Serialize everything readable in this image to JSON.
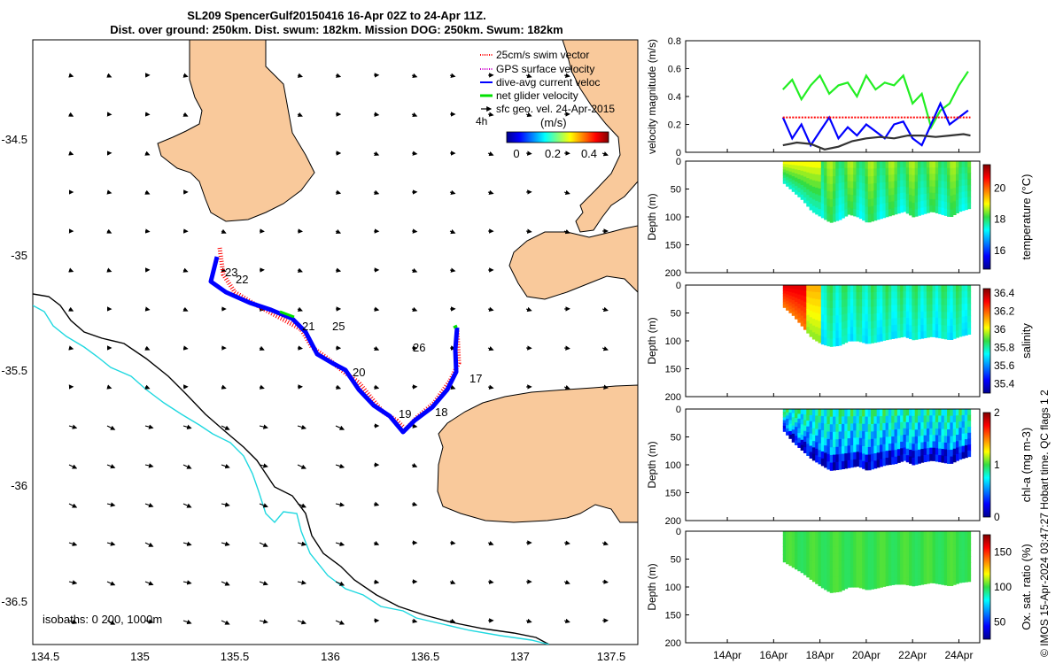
{
  "title_line1": "SL209 SpencerGulf20150416 16-Apr 02Z to 24-Apr 11Z.",
  "title_line2": "Dist. over ground: 250km. Dist. swum: 182km. Mission DOG: 250km. Swum: 182km",
  "credit": "© IMOS 15-Apr-2024 03:47:27 Hobart time. QC flags 1  2",
  "colors": {
    "land": "#f9c99b",
    "track_red": "#ff0000",
    "track_blue": "#0000ff",
    "track_green": "#00e000",
    "isobath200": "#000000",
    "isobath1000": "#20d8e0",
    "vel_mag_red": "#ff0000",
    "vel_mag_blue": "#0000ff",
    "vel_mag_green": "#22ee22",
    "vel_mag_black": "#333333"
  },
  "map": {
    "x_ticks": [
      "134.5",
      "135",
      "135.5",
      "136",
      "136.5",
      "137",
      "137.5"
    ],
    "y_ticks": [
      "-34.5",
      "-35",
      "-35.5",
      "-36",
      "-36.5"
    ],
    "isobaths_label": "isobaths: 0   200, 1000m",
    "legend": [
      {
        "label": "25cm/s swim vector",
        "color": "#ff0000",
        "style": "dotted"
      },
      {
        "label": "GPS surface velocity",
        "color": "#cc00cc",
        "style": "dotted"
      },
      {
        "label": "dive-avg current veloc",
        "color": "#0000ff",
        "style": "solid"
      },
      {
        "label": "net glider velocity",
        "color": "#00e000",
        "style": "solid"
      },
      {
        "label": "sfc geo. vel. 24-Apr-2015",
        "color": "#000000",
        "style": "arrow"
      }
    ],
    "colorbar_label": "(m/s)",
    "colorbar_side_label": "4h",
    "colorbar_ticks": [
      "0",
      "0.2",
      "0.4"
    ],
    "day_labels": [
      "23",
      "22",
      "21",
      "25",
      "26",
      "20",
      "17",
      "19",
      "18"
    ]
  },
  "chart_data": [
    {
      "type": "line",
      "title": "",
      "xlabel": "",
      "ylabel": "velocity magnitude (m/s)",
      "ylim": [
        0,
        0.8
      ],
      "y_ticks": [
        "0",
        "0.2",
        "0.4",
        "0.6",
        "0.8"
      ],
      "x_ticks": [
        "14Apr",
        "16Apr",
        "18Apr",
        "20Apr",
        "22Apr",
        "24Apr"
      ],
      "series": [
        {
          "name": "net glider velocity",
          "x": [
            16.4,
            16.8,
            17.2,
            17.6,
            18.0,
            18.4,
            18.8,
            19.2,
            19.6,
            20.0,
            20.4,
            20.8,
            21.2,
            21.6,
            22.0,
            22.4,
            22.8,
            23.2,
            23.6,
            24.0,
            24.4
          ],
          "values": [
            0.45,
            0.52,
            0.38,
            0.48,
            0.55,
            0.42,
            0.48,
            0.5,
            0.4,
            0.55,
            0.45,
            0.5,
            0.48,
            0.55,
            0.35,
            0.42,
            0.18,
            0.3,
            0.35,
            0.48,
            0.58
          ]
        },
        {
          "name": "dive-avg current veloc",
          "x": [
            16.4,
            16.8,
            17.2,
            17.6,
            18.0,
            18.4,
            18.8,
            19.2,
            19.6,
            20.0,
            20.4,
            20.8,
            21.2,
            21.6,
            22.0,
            22.4,
            22.8,
            23.2,
            23.6,
            24.0,
            24.4
          ],
          "values": [
            0.25,
            0.1,
            0.2,
            0.05,
            0.15,
            0.25,
            0.1,
            0.18,
            0.12,
            0.2,
            0.15,
            0.1,
            0.2,
            0.22,
            0.1,
            0.05,
            0.2,
            0.35,
            0.2,
            0.25,
            0.3
          ]
        },
        {
          "name": "25cm/s swim vector",
          "x": [
            16.4,
            24.5
          ],
          "values": [
            0.25,
            0.25
          ]
        },
        {
          "name": "sfc geo. vel.",
          "x": [
            16.4,
            17.0,
            17.6,
            18.2,
            18.8,
            19.4,
            20.0,
            20.6,
            21.2,
            21.8,
            22.4,
            23.0,
            23.6,
            24.2,
            24.5
          ],
          "values": [
            0.05,
            0.07,
            0.06,
            0.02,
            0.04,
            0.08,
            0.1,
            0.11,
            0.1,
            0.12,
            0.12,
            0.11,
            0.12,
            0.13,
            0.12
          ]
        }
      ]
    },
    {
      "type": "heatmap",
      "ylabel": "Depth (m)",
      "colorbar_label": "temperature (°C)",
      "colorbar_ticks": [
        "16",
        "18",
        "20"
      ],
      "clim": [
        14.8,
        21.5
      ],
      "ylim": [
        0,
        200
      ],
      "y_ticks": [
        "0",
        "50",
        "100",
        "150",
        "200"
      ],
      "x_range": [
        16.4,
        24.5
      ],
      "bottom_depth_m": [
        40,
        55,
        70,
        90,
        100,
        110,
        105,
        95,
        100,
        110,
        105,
        100,
        95,
        90,
        100,
        95,
        90,
        95,
        100,
        90,
        85
      ]
    },
    {
      "type": "heatmap",
      "ylabel": "Depth (m)",
      "colorbar_label": "salinity",
      "colorbar_ticks": [
        "35.4",
        "35.6",
        "35.8",
        "36",
        "36.2",
        "36.4"
      ],
      "clim": [
        35.3,
        36.45
      ],
      "ylim": [
        0,
        200
      ],
      "y_ticks": [
        "0",
        "50",
        "100",
        "150",
        "200"
      ],
      "x_range": [
        16.4,
        24.5
      ],
      "bottom_depth_m": [
        40,
        55,
        75,
        95,
        105,
        110,
        108,
        100,
        100,
        105,
        102,
        98,
        95,
        92,
        98,
        95,
        92,
        95,
        98,
        92,
        88
      ]
    },
    {
      "type": "heatmap",
      "ylabel": "Depth (m)",
      "colorbar_label": "chl-a (mg m-3)",
      "colorbar_ticks": [
        "0",
        "1",
        "2"
      ],
      "clim": [
        0,
        2
      ],
      "ylim": [
        0,
        200
      ],
      "y_ticks": [
        "0",
        "50",
        "100",
        "150",
        "200"
      ],
      "x_range": [
        16.4,
        24.5
      ],
      "bottom_depth_m": [
        40,
        60,
        75,
        90,
        100,
        110,
        108,
        105,
        102,
        110,
        105,
        100,
        98,
        92,
        100,
        95,
        92,
        95,
        98,
        90,
        85
      ]
    },
    {
      "type": "heatmap",
      "ylabel": "Depth (m)",
      "colorbar_label": "Ox. sat. ratio (%)",
      "colorbar_ticks": [
        "50",
        "100",
        "150"
      ],
      "clim": [
        25,
        175
      ],
      "ylim": [
        0,
        200
      ],
      "y_ticks": [
        "0",
        "50",
        "100",
        "150",
        "200"
      ],
      "x_range": [
        16.4,
        24.5
      ],
      "bottom_depth_m": [
        55,
        65,
        75,
        88,
        100,
        110,
        108,
        100,
        100,
        105,
        102,
        98,
        95,
        95,
        98,
        95,
        92,
        95,
        98,
        92,
        90
      ]
    }
  ]
}
